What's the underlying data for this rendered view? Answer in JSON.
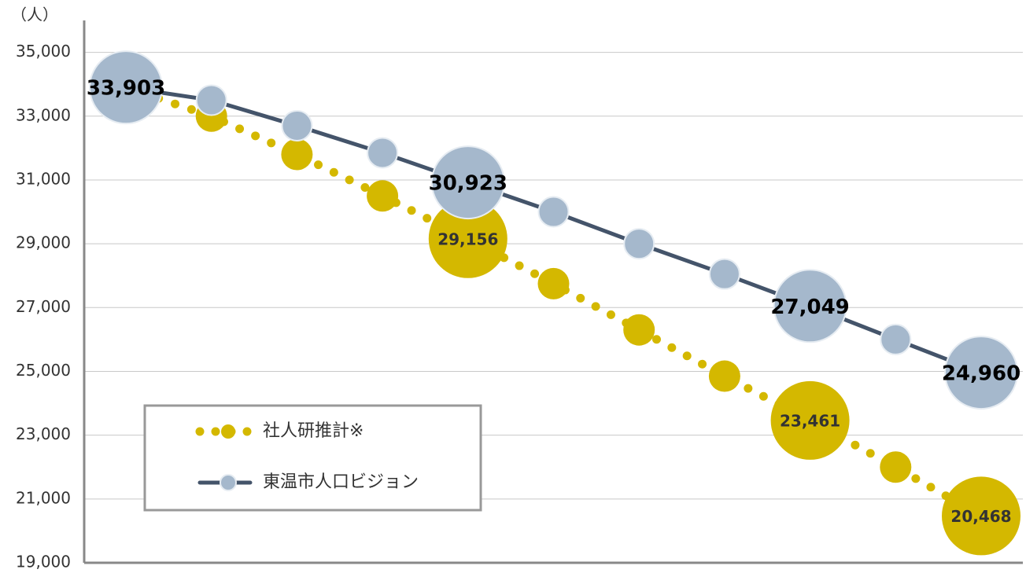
{
  "chart_data": {
    "type": "line",
    "y_label": "（人）",
    "categories": [
      null,
      null,
      null,
      null,
      null,
      null,
      null,
      null,
      null,
      null,
      null
    ],
    "series": [
      {
        "name": "社人研推計※",
        "color": "#d4b800",
        "line_style": "dotted",
        "values": [
          33903,
          33000,
          31800,
          30500,
          29156,
          27750,
          26300,
          24850,
          23461,
          22000,
          20468
        ],
        "value_labels": [
          null,
          null,
          null,
          null,
          "29,156",
          null,
          null,
          null,
          "23,461",
          null,
          "20,468"
        ]
      },
      {
        "name": "東温市人口ビジョン",
        "color": "#44546a",
        "marker_color": "#a5b8cc",
        "line_style": "solid",
        "values": [
          33903,
          33500,
          32700,
          31850,
          30923,
          30000,
          29000,
          28050,
          27049,
          26000,
          24960
        ],
        "value_labels": [
          "33,903",
          null,
          null,
          null,
          "30,923",
          null,
          null,
          null,
          "27,049",
          null,
          "24,960"
        ]
      }
    ],
    "ylim": [
      19000,
      36000
    ],
    "yticks": [
      {
        "value": 19000,
        "label": "19,000"
      },
      {
        "value": 21000,
        "label": "21,000"
      },
      {
        "value": 23000,
        "label": "23,000"
      },
      {
        "value": 25000,
        "label": "25,000"
      },
      {
        "value": 27000,
        "label": "27,000"
      },
      {
        "value": 29000,
        "label": "29,000"
      },
      {
        "value": 31000,
        "label": "31,000"
      },
      {
        "value": 33000,
        "label": "33,000"
      },
      {
        "value": 35000,
        "label": "35,000"
      }
    ],
    "grid": true,
    "legend": "lower left"
  }
}
